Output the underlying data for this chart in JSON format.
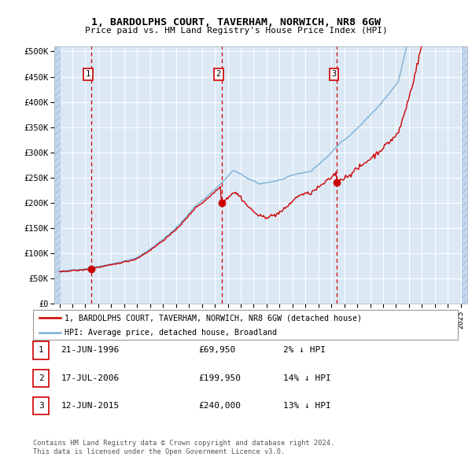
{
  "title": "1, BARDOLPHS COURT, TAVERHAM, NORWICH, NR8 6GW",
  "subtitle": "Price paid vs. HM Land Registry's House Price Index (HPI)",
  "plot_bg_color": "#dce9f5",
  "grid_color": "#ffffff",
  "red_line_color": "#cc0000",
  "blue_line_color": "#7bafd4",
  "sale_marker_color": "#cc0000",
  "vline_color": "#cc0000",
  "sales": [
    {
      "num": 1,
      "date_x": 1996.47,
      "price": 69950,
      "label": "21-JUN-1996",
      "pct": "2%",
      "dir": "↓"
    },
    {
      "num": 2,
      "date_x": 2006.54,
      "price": 199950,
      "label": "17-JUL-2006",
      "pct": "14%",
      "dir": "↓"
    },
    {
      "num": 3,
      "date_x": 2015.44,
      "price": 240000,
      "label": "12-JUN-2015",
      "pct": "13%",
      "dir": "↓"
    }
  ],
  "yticks": [
    0,
    50000,
    100000,
    150000,
    200000,
    250000,
    300000,
    350000,
    400000,
    450000,
    500000
  ],
  "ylabels": [
    "£0",
    "£50K",
    "£100K",
    "£150K",
    "£200K",
    "£250K",
    "£300K",
    "£350K",
    "£400K",
    "£450K",
    "£500K"
  ],
  "ylim_max": 510000,
  "xlim_start": 1993.6,
  "xlim_end": 2025.5,
  "xtick_years": [
    1994,
    1995,
    1996,
    1997,
    1998,
    1999,
    2000,
    2001,
    2002,
    2003,
    2004,
    2005,
    2006,
    2007,
    2008,
    2009,
    2010,
    2011,
    2012,
    2013,
    2014,
    2015,
    2016,
    2017,
    2018,
    2019,
    2020,
    2021,
    2022,
    2023,
    2024,
    2025
  ],
  "footer1": "Contains HM Land Registry data © Crown copyright and database right 2024.",
  "footer2": "This data is licensed under the Open Government Licence v3.0.",
  "legend1": "1, BARDOLPHS COURT, TAVERHAM, NORWICH, NR8 6GW (detached house)",
  "legend2": "HPI: Average price, detached house, Broadland"
}
